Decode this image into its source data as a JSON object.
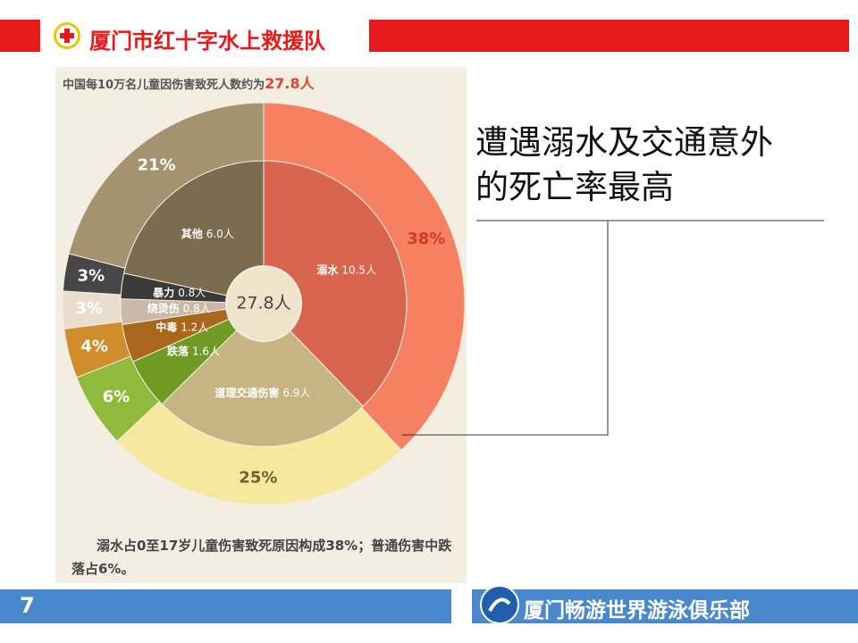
{
  "header": {
    "title": "厦门市红十字水上救援队"
  },
  "chart_data": {
    "type": "donut",
    "title": "中国每10万名儿童因伤害致死人数约为",
    "title_highlight": "27.8人",
    "total": 27.8,
    "total_label": "27.8人",
    "categories": [
      "溺水",
      "道理交通伤害",
      "跌落",
      "中毒",
      "烧烫伤",
      "暴力",
      "其他"
    ],
    "inner_values": [
      10.5,
      6.9,
      1.6,
      1.2,
      0.8,
      0.8,
      6.0
    ],
    "inner_value_labels": [
      "10.5人",
      "6.9人",
      "1.6人",
      "1.2人",
      "0.8人",
      "0.8人",
      "6.0人"
    ],
    "outer_values": [
      38,
      25,
      6,
      4,
      3,
      3,
      21
    ],
    "outer_value_labels": [
      "38%",
      "25%",
      "6%",
      "4%",
      "3%",
      "3%",
      "21%"
    ],
    "inner_colors": [
      "#d9654e",
      "#c6b483",
      "#6f9b25",
      "#a8671b",
      "#c9b9a6",
      "#3a3a3a",
      "#7c6c4f"
    ],
    "outer_colors": [
      "#f58162",
      "#f6e89d",
      "#8fba3b",
      "#cf8d2c",
      "#e9ddce",
      "#474747",
      "#a5926e"
    ],
    "outer_label_colors": [
      "#d33a2a",
      "#7a5c32",
      "#ffffff",
      "#ffffff",
      "#ffffff",
      "#ffffff",
      "#ffffff"
    ],
    "caption": "溺水占0至17岁儿童伤害致死原因构成38%；普通伤害中跌落占6%。"
  },
  "headline": [
    "遭遇溺水及交通意外",
    "的死亡率最高"
  ],
  "footer": {
    "page": "7",
    "org": "厦门畅游世界游泳俱乐部"
  }
}
